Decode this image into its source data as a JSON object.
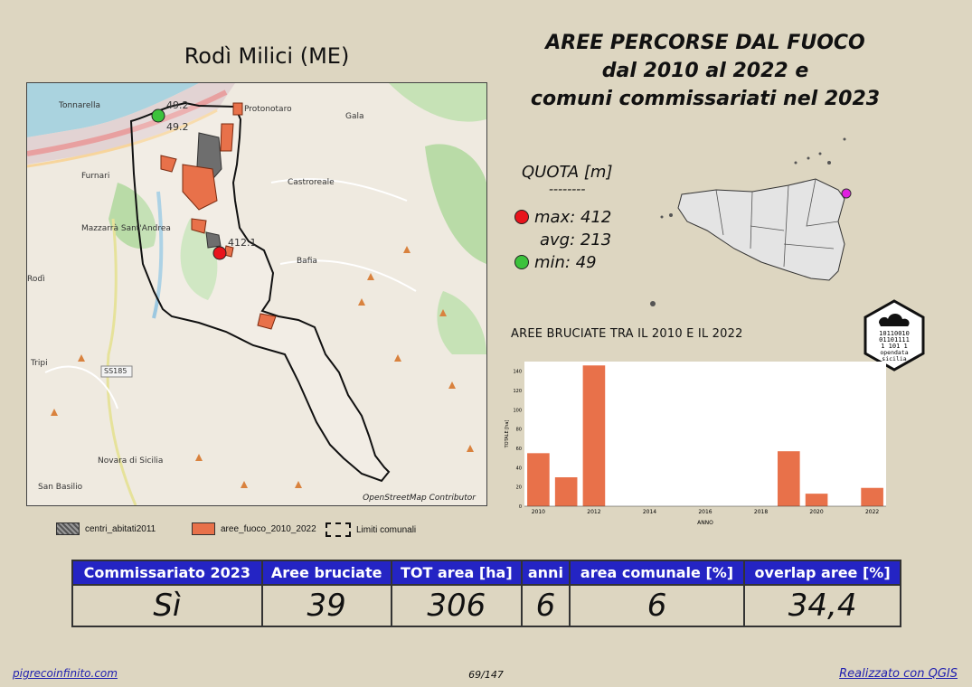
{
  "header": {
    "municipality": "Rodì Milici (ME)",
    "title_line1": "AREE PERCORSE DAL FUOCO",
    "title_line2": "dal 2010 al 2022 e",
    "title_line3": "comuni commissariati nel 2023"
  },
  "map": {
    "place_labels": [
      "Tonnarella",
      "Furnari",
      "Mazzarrà Sant'Andrea",
      "Castroreale",
      "Bafia",
      "Gala",
      "Protonotaro",
      "Rodì",
      "Tripi",
      "Novara di Sicilia",
      "San Basilio"
    ],
    "road_label": "SS185",
    "point_labels": [
      "49.2",
      "49.2",
      "412.1"
    ],
    "attribution": "OpenStreetMap Contributor"
  },
  "legend": {
    "items": [
      {
        "label": "centri_abitati2011"
      },
      {
        "label": "aree_fuoco_2010_2022"
      },
      {
        "label": "Limiti comunali"
      }
    ]
  },
  "quota": {
    "title": "QUOTA [m]",
    "separator": "--------",
    "max": "max: 412",
    "avg": "avg: 213",
    "min": "min: 49",
    "max_color": "#e8141c",
    "min_color": "#3cc23c"
  },
  "logo": {
    "text_lines": [
      "10110010",
      "01101111",
      "1  101 1"
    ],
    "caption1": "opendata",
    "caption2": "sicilia"
  },
  "chart_title": "AREE BRUCIATE TRA IL 2010 E IL 2022",
  "chart_data": {
    "type": "bar",
    "x": [
      2010,
      2011,
      2012,
      2019,
      2020,
      2022
    ],
    "values": [
      55,
      30,
      146,
      57,
      13,
      19
    ],
    "bar_color": "#e8714a",
    "xlim": [
      2009.5,
      2022.5
    ],
    "ylim": [
      0,
      150
    ],
    "xticks": [
      2010,
      2012,
      2014,
      2016,
      2018,
      2020,
      2022
    ],
    "yticks": [
      0,
      20,
      40,
      60,
      80,
      100,
      120,
      140
    ],
    "xlabel": "ANNO",
    "ylabel": "TOTALE [ha]"
  },
  "table": {
    "headers": [
      "Commissariato 2023",
      "Aree bruciate",
      "TOT area [ha]",
      "anni",
      "area comunale [%]",
      "overlap aree [%]"
    ],
    "values": [
      "Sì",
      "39",
      "306",
      "6",
      "6",
      "34,4"
    ]
  },
  "footer": {
    "left": "pigrecoinfinito.com",
    "center": "69/147",
    "right": "Realizzato con QGIS"
  }
}
